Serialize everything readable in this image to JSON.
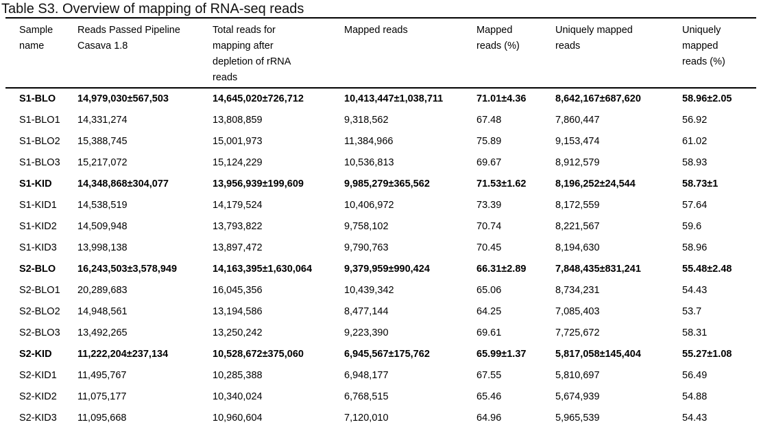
{
  "title": "Table S3. Overview of mapping of RNA-seq reads",
  "table": {
    "headers": [
      "Sample\nname",
      "Reads Passed Pipeline\nCasava 1.8",
      "Total reads for\nmapping after\ndepletion of rRNA\nreads",
      "Mapped reads",
      "Mapped\nreads (%)",
      "Uniquely mapped\nreads",
      "Uniquely\nmapped\nreads (%)"
    ],
    "rows": [
      {
        "bold": true,
        "cells": [
          "S1-BLO",
          "14,979,030±567,503",
          "14,645,020±726,712",
          "10,413,447±1,038,711",
          "71.01±4.36",
          "8,642,167±687,620",
          "58.96±2.05"
        ]
      },
      {
        "bold": false,
        "cells": [
          "S1-BLO1",
          "14,331,274",
          "13,808,859",
          "9,318,562",
          "67.48",
          "7,860,447",
          "56.92"
        ]
      },
      {
        "bold": false,
        "cells": [
          "S1-BLO2",
          "15,388,745",
          "15,001,973",
          "11,384,966",
          "75.89",
          "9,153,474",
          "61.02"
        ]
      },
      {
        "bold": false,
        "cells": [
          "S1-BLO3",
          "15,217,072",
          "15,124,229",
          "10,536,813",
          "69.67",
          "8,912,579",
          "58.93"
        ]
      },
      {
        "bold": true,
        "cells": [
          "S1-KID",
          "14,348,868±304,077",
          "13,956,939±199,609",
          "9,985,279±365,562",
          "71.53±1.62",
          "8,196,252±24,544",
          "58.73±1"
        ]
      },
      {
        "bold": false,
        "cells": [
          "S1-KID1",
          "14,538,519",
          "14,179,524",
          "10,406,972",
          "73.39",
          "8,172,559",
          "57.64"
        ]
      },
      {
        "bold": false,
        "cells": [
          "S1-KID2",
          "14,509,948",
          "13,793,822",
          "9,758,102",
          "70.74",
          "8,221,567",
          "59.6"
        ]
      },
      {
        "bold": false,
        "cells": [
          "S1-KID3",
          "13,998,138",
          "13,897,472",
          "9,790,763",
          "70.45",
          "8,194,630",
          "58.96"
        ]
      },
      {
        "bold": true,
        "cells": [
          "S2-BLO",
          "16,243,503±3,578,949",
          "14,163,395±1,630,064",
          "9,379,959±990,424",
          "66.31±2.89",
          "7,848,435±831,241",
          "55.48±2.48"
        ]
      },
      {
        "bold": false,
        "cells": [
          "S2-BLO1",
          "20,289,683",
          "16,045,356",
          "10,439,342",
          "65.06",
          "8,734,231",
          "54.43"
        ]
      },
      {
        "bold": false,
        "cells": [
          "S2-BLO2",
          "14,948,561",
          "13,194,586",
          "8,477,144",
          "64.25",
          "7,085,403",
          "53.7"
        ]
      },
      {
        "bold": false,
        "cells": [
          "S2-BLO3",
          "13,492,265",
          "13,250,242",
          "9,223,390",
          "69.61",
          "7,725,672",
          "58.31"
        ]
      },
      {
        "bold": true,
        "cells": [
          "S2-KID",
          "11,222,204±237,134",
          "10,528,672±375,060",
          "6,945,567±175,762",
          "65.99±1.37",
          "5,817,058±145,404",
          "55.27±1.08"
        ]
      },
      {
        "bold": false,
        "cells": [
          "S2-KID1",
          "11,495,767",
          "10,285,388",
          "6,948,177",
          "67.55",
          "5,810,697",
          "56.49"
        ]
      },
      {
        "bold": false,
        "cells": [
          "S2-KID2",
          "11,075,177",
          "10,340,024",
          "6,768,515",
          "65.46",
          "5,674,939",
          "54.88"
        ]
      },
      {
        "bold": false,
        "cells": [
          "S2-KID3",
          "11,095,668",
          "10,960,604",
          "7,120,010",
          "64.96",
          "5,965,539",
          "54.43"
        ]
      }
    ]
  }
}
